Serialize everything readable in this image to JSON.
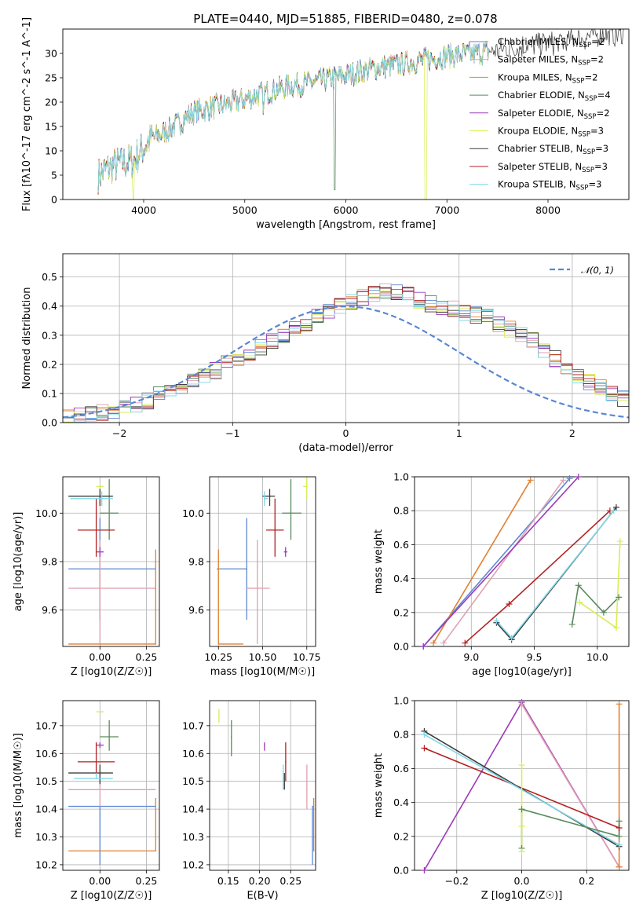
{
  "figure": {
    "title": "PLATE=0440, MJD=51885, FIBERID=0480, z=0.078"
  },
  "models": [
    {
      "label": "Chabrier MILES, N",
      "sub": "SSP",
      "suffix": "=2",
      "color": "#5b87d3"
    },
    {
      "label": "Salpeter MILES, N",
      "sub": "SSP",
      "suffix": "=2",
      "color": "#e0a0b0"
    },
    {
      "label": "Kroupa MILES, N",
      "sub": "SSP",
      "suffix": "=2",
      "color": "#b89a3a"
    },
    {
      "label": "Chabrier ELODIE, N",
      "sub": "SSP",
      "suffix": "=4",
      "color": "#5a8a5e"
    },
    {
      "label": "Salpeter ELODIE, N",
      "sub": "SSP",
      "suffix": "=2",
      "color": "#9b3ab8"
    },
    {
      "label": "Kroupa ELODIE, N",
      "sub": "SSP",
      "suffix": "=3",
      "color": "#d8ee50"
    },
    {
      "label": "Chabrier STELIB, N",
      "sub": "SSP",
      "suffix": "=3",
      "color": "#3c3c3c"
    },
    {
      "label": "Salpeter STELIB, N",
      "sub": "SSP",
      "suffix": "=3",
      "color": "#b22222"
    },
    {
      "label": "Kroupa STELIB, N",
      "sub": "SSP",
      "suffix": "=3",
      "color": "#7fd8e8"
    }
  ],
  "chart_data": [
    {
      "type": "line",
      "title": "PLATE=0440, MJD=51885, FIBERID=0480, z=0.078",
      "xlabel": "wavelength [Angstrom, rest frame]",
      "ylabel": "Flux [fλ10^-17 erg cm^-2 s^-1 A^-1]",
      "xlim": [
        3200,
        8800
      ],
      "ylim": [
        0,
        35
      ],
      "xticks": [
        4000,
        5000,
        6000,
        7000,
        8000
      ],
      "yticks": [
        0,
        5,
        10,
        15,
        20,
        25,
        30
      ],
      "legend": "top-right",
      "spectrum_trend": {
        "x": [
          3550,
          3700,
          3900,
          4050,
          4300,
          4500,
          4800,
          5000,
          5200,
          5500,
          5800,
          6000,
          6300,
          6600,
          7000,
          7300,
          7600,
          8000,
          8300,
          8600
        ],
        "y": [
          5,
          7,
          8,
          12,
          15,
          18,
          19.5,
          20.5,
          22,
          23.5,
          24.5,
          25.5,
          27,
          28,
          29.5,
          30,
          31,
          32,
          33,
          34
        ]
      }
    },
    {
      "type": "bar",
      "xlabel": "(data-model)/error",
      "ylabel": "Normed distribution",
      "xlim": [
        -2.5,
        2.5
      ],
      "ylim": [
        0,
        0.58
      ],
      "xticks": [
        -2,
        -1,
        0,
        1,
        2
      ],
      "yticks": [
        0.0,
        0.1,
        0.2,
        0.3,
        0.4,
        0.5
      ],
      "legend": "top-right",
      "reference_label": "N(0,1)",
      "reference_color": "#5b87d3",
      "bin_width": 0.1,
      "bin_start": -2.5,
      "histogram_mean": [
        0.02,
        0.025,
        0.03,
        0.035,
        0.04,
        0.05,
        0.06,
        0.075,
        0.095,
        0.11,
        0.125,
        0.14,
        0.16,
        0.18,
        0.2,
        0.22,
        0.24,
        0.26,
        0.28,
        0.3,
        0.32,
        0.34,
        0.36,
        0.38,
        0.4,
        0.41,
        0.43,
        0.44,
        0.45,
        0.45,
        0.44,
        0.42,
        0.41,
        0.4,
        0.39,
        0.38,
        0.37,
        0.36,
        0.34,
        0.32,
        0.3,
        0.28,
        0.25,
        0.22,
        0.19,
        0.16,
        0.14,
        0.12,
        0.1,
        0.085,
        0.07,
        0.06,
        0.05,
        0.042,
        0.035,
        0.03,
        0.025,
        0.02,
        0.018,
        0.015
      ]
    },
    {
      "type": "scatter",
      "xlabel": "Z [log10(Z/Z☉)]",
      "ylabel": "age [log10(age/yr)]",
      "xlim": [
        -0.2,
        0.32
      ],
      "ylim": [
        9.45,
        10.15
      ],
      "xticks": [
        0.0,
        0.25
      ],
      "yticks": [
        9.6,
        9.8,
        10.0
      ],
      "points": [
        {
          "x": 0.0,
          "y": 9.77,
          "xerr": [
            0.17,
            0.3
          ],
          "yerr": [
            0.21,
            0.21
          ],
          "color": "#5b87d3"
        },
        {
          "x": 0.0,
          "y": 9.69,
          "xerr": [
            0.17,
            0.3
          ],
          "yerr": [
            0.23,
            0.2
          ],
          "color": "#e0a0b0"
        },
        {
          "x": 0.3,
          "y": 9.46,
          "xerr": [
            0.47,
            0.0
          ],
          "yerr": [
            0.0,
            0.39
          ],
          "color": "#e08030"
        },
        {
          "x": 0.05,
          "y": 10.0,
          "xerr": [
            0.05,
            0.05
          ],
          "yerr": [
            0.11,
            0.14
          ],
          "color": "#5a8a5e"
        },
        {
          "x": 0.0,
          "y": 10.07,
          "xerr": [
            0.17,
            0.07
          ],
          "yerr": [
            0.04,
            0.03
          ],
          "color": "#3c3c3c"
        },
        {
          "x": -0.02,
          "y": 9.93,
          "xerr": [
            0.1,
            0.1
          ],
          "yerr": [
            0.11,
            0.13
          ],
          "color": "#b22222"
        },
        {
          "x": 0.0,
          "y": 9.84,
          "xerr": [
            0.02,
            0.02
          ],
          "yerr": [
            0.02,
            0.02
          ],
          "color": "#9b3ab8"
        },
        {
          "x": 0.01,
          "y": 10.06,
          "xerr": [
            0.17,
            0.06
          ],
          "yerr": [
            0.03,
            0.03
          ],
          "color": "#7fd8e8"
        },
        {
          "x": 0.0,
          "y": 10.11,
          "xerr": [
            0.02,
            0.02
          ],
          "yerr": [
            0.0,
            0.0
          ],
          "color": "#d8ee50"
        }
      ]
    },
    {
      "type": "scatter",
      "xlabel": "mass [log10(M/M☉)]",
      "ylabel": "",
      "xlim": [
        10.2,
        10.8
      ],
      "ylim": [
        9.45,
        10.15
      ],
      "xticks": [
        10.25,
        10.5,
        10.75
      ],
      "yticks": [
        9.6,
        9.8,
        10.0
      ],
      "points": [
        {
          "x": 10.41,
          "y": 9.77,
          "xerr": [
            0.17,
            0.0
          ],
          "yerr": [
            0.21,
            0.21
          ],
          "color": "#5b87d3"
        },
        {
          "x": 10.47,
          "y": 9.69,
          "xerr": [
            0.06,
            0.07
          ],
          "yerr": [
            0.23,
            0.2
          ],
          "color": "#e0a0b0"
        },
        {
          "x": 10.25,
          "y": 9.46,
          "xerr": [
            0.0,
            0.14
          ],
          "yerr": [
            0.0,
            0.39
          ],
          "color": "#e08030"
        },
        {
          "x": 10.66,
          "y": 10.0,
          "xerr": [
            0.05,
            0.06
          ],
          "yerr": [
            0.11,
            0.14
          ],
          "color": "#5a8a5e"
        },
        {
          "x": 10.54,
          "y": 10.07,
          "xerr": [
            0.04,
            0.03
          ],
          "yerr": [
            0.04,
            0.03
          ],
          "color": "#3c3c3c"
        },
        {
          "x": 10.57,
          "y": 9.93,
          "xerr": [
            0.05,
            0.05
          ],
          "yerr": [
            0.11,
            0.13
          ],
          "color": "#b22222"
        },
        {
          "x": 10.63,
          "y": 9.84,
          "xerr": [
            0.01,
            0.01
          ],
          "yerr": [
            0.02,
            0.02
          ],
          "color": "#9b3ab8"
        },
        {
          "x": 10.51,
          "y": 10.06,
          "xerr": [
            0.0,
            0.02
          ],
          "yerr": [
            0.03,
            0.03
          ],
          "color": "#7fd8e8"
        },
        {
          "x": 10.75,
          "y": 10.11,
          "xerr": [
            0.02,
            0.0
          ],
          "yerr": [
            0.05,
            0.05
          ],
          "color": "#d8ee50"
        }
      ]
    },
    {
      "type": "line",
      "xlabel": "age [log10(age/yr)]",
      "ylabel": "mass weight",
      "xlim": [
        8.55,
        10.25
      ],
      "ylim": [
        0,
        1.0
      ],
      "xticks": [
        9.0,
        9.5,
        10.0
      ],
      "yticks": [
        0.0,
        0.2,
        0.4,
        0.6,
        0.8,
        1.0
      ],
      "series": [
        {
          "x": [
            8.62,
            9.78
          ],
          "y": [
            0.0,
            0.99
          ],
          "color": "#5b87d3"
        },
        {
          "x": [
            8.78,
            9.73
          ],
          "y": [
            0.02,
            0.98
          ],
          "color": "#e0a0b0"
        },
        {
          "x": [
            8.7,
            9.47
          ],
          "y": [
            0.02,
            0.98
          ],
          "color": "#e08030"
        },
        {
          "x": [
            8.62,
            9.85
          ],
          "y": [
            0.0,
            1.0
          ],
          "color": "#9b3ab8"
        },
        {
          "x": [
            8.95,
            9.3,
            10.1
          ],
          "y": [
            0.02,
            0.25,
            0.8
          ],
          "color": "#b22222"
        },
        {
          "x": [
            9.2,
            9.32,
            10.15
          ],
          "y": [
            0.14,
            0.04,
            0.82
          ],
          "color": "#3c3c3c"
        },
        {
          "x": [
            9.2,
            9.32,
            10.13
          ],
          "y": [
            0.15,
            0.05,
            0.8
          ],
          "color": "#7fd8e8"
        },
        {
          "x": [
            9.8,
            9.85,
            10.05,
            10.17
          ],
          "y": [
            0.13,
            0.36,
            0.2,
            0.29
          ],
          "color": "#5a8a5e"
        },
        {
          "x": [
            9.86,
            10.15,
            10.18
          ],
          "y": [
            0.26,
            0.11,
            0.62
          ],
          "color": "#d8ee50"
        }
      ]
    },
    {
      "type": "scatter",
      "xlabel": "Z [log10(Z/Z☉)]",
      "ylabel": "mass [log10(M/M☉)]",
      "xlim": [
        -0.2,
        0.32
      ],
      "ylim": [
        10.18,
        10.79
      ],
      "xticks": [
        0.0,
        0.25
      ],
      "yticks": [
        10.2,
        10.3,
        10.4,
        10.5,
        10.6,
        10.7
      ],
      "points": [
        {
          "x": 0.0,
          "y": 10.41,
          "xerr": [
            0.17,
            0.3
          ],
          "yerr": [
            0.21,
            0.0
          ],
          "color": "#5b87d3"
        },
        {
          "x": 0.0,
          "y": 10.47,
          "xerr": [
            0.17,
            0.3
          ],
          "yerr": [
            0.06,
            0.07
          ],
          "color": "#e0a0b0"
        },
        {
          "x": 0.3,
          "y": 10.25,
          "xerr": [
            0.47,
            0.0
          ],
          "yerr": [
            0.0,
            0.19
          ],
          "color": "#e08030"
        },
        {
          "x": 0.05,
          "y": 10.66,
          "xerr": [
            0.05,
            0.05
          ],
          "yerr": [
            0.05,
            0.06
          ],
          "color": "#5a8a5e"
        },
        {
          "x": 0.0,
          "y": 10.53,
          "xerr": [
            0.17,
            0.07
          ],
          "yerr": [
            0.04,
            0.03
          ],
          "color": "#3c3c3c"
        },
        {
          "x": -0.02,
          "y": 10.57,
          "xerr": [
            0.1,
            0.1
          ],
          "yerr": [
            0.05,
            0.07
          ],
          "color": "#b22222"
        },
        {
          "x": 0.0,
          "y": 10.63,
          "xerr": [
            0.02,
            0.02
          ],
          "yerr": [
            0.01,
            0.01
          ],
          "color": "#9b3ab8"
        },
        {
          "x": -0.02,
          "y": 10.51,
          "xerr": [
            0.12,
            0.09
          ],
          "yerr": [
            0.0,
            0.02
          ],
          "color": "#7fd8e8"
        },
        {
          "x": 0.0,
          "y": 10.75,
          "xerr": [
            0.02,
            0.02
          ],
          "yerr": [
            0.0,
            0.0
          ],
          "color": "#d8ee50"
        }
      ]
    },
    {
      "type": "scatter",
      "xlabel": "E(B-V)",
      "ylabel": "",
      "xlim": [
        0.12,
        0.29
      ],
      "ylim": [
        10.18,
        10.79
      ],
      "xticks": [
        0.15,
        0.2,
        0.25
      ],
      "yticks": [
        10.2,
        10.3,
        10.4,
        10.5,
        10.6,
        10.7
      ],
      "points": [
        {
          "x": 0.285,
          "y": 10.41,
          "yerr": [
            0.21,
            0.0
          ],
          "color": "#5b87d3"
        },
        {
          "x": 0.276,
          "y": 10.47,
          "yerr": [
            0.07,
            0.09
          ],
          "color": "#e0a0b0"
        },
        {
          "x": 0.287,
          "y": 10.25,
          "yerr": [
            0.0,
            0.19
          ],
          "color": "#e08030"
        },
        {
          "x": 0.155,
          "y": 10.66,
          "yerr": [
            0.07,
            0.06
          ],
          "color": "#5a8a5e"
        },
        {
          "x": 0.24,
          "y": 10.5,
          "yerr": [
            0.03,
            0.03
          ],
          "color": "#3c3c3c"
        },
        {
          "x": 0.242,
          "y": 10.57,
          "yerr": [
            0.07,
            0.07
          ],
          "color": "#b22222"
        },
        {
          "x": 0.208,
          "y": 10.63,
          "yerr": [
            0.02,
            0.01
          ],
          "color": "#9b3ab8"
        },
        {
          "x": 0.238,
          "y": 10.51,
          "yerr": [
            0.04,
            0.05
          ],
          "color": "#7fd8e8"
        },
        {
          "x": 0.135,
          "y": 10.73,
          "yerr": [
            0.02,
            0.03
          ],
          "color": "#d8ee50"
        }
      ]
    },
    {
      "type": "line",
      "xlabel": "Z [log10(Z/Z☉)]",
      "ylabel": "mass weight",
      "xlim": [
        -0.33,
        0.33
      ],
      "ylim": [
        0,
        1.0
      ],
      "xticks": [
        -0.2,
        0.0,
        0.2
      ],
      "yticks": [
        0.0,
        0.2,
        0.4,
        0.6,
        0.8,
        1.0
      ],
      "series": [
        {
          "x": [
            -0.3,
            0.0,
            0.3
          ],
          "y": [
            0.0,
            0.99,
            0.02
          ],
          "color": "#9b3ab8"
        },
        {
          "x": [
            0.0,
            0.3
          ],
          "y": [
            0.98,
            0.02
          ],
          "color": "#e0a0b0"
        },
        {
          "x": [
            0.3,
            0.3
          ],
          "y": [
            0.02,
            0.98
          ],
          "color": "#e08030"
        },
        {
          "x": [
            -0.3,
            0.3
          ],
          "y": [
            0.72,
            0.25
          ],
          "color": "#b22222"
        },
        {
          "x": [
            -0.3,
            0.3
          ],
          "y": [
            0.82,
            0.14
          ],
          "color": "#3c3c3c"
        },
        {
          "x": [
            -0.3,
            0.3
          ],
          "y": [
            0.8,
            0.15
          ],
          "color": "#7fd8e8"
        },
        {
          "x": [
            0.0,
            0.0,
            0.3,
            0.3
          ],
          "y": [
            0.13,
            0.36,
            0.2,
            0.29
          ],
          "color": "#5a8a5e"
        },
        {
          "x": [
            0.0,
            0.0,
            0.0
          ],
          "y": [
            0.26,
            0.11,
            0.62
          ],
          "color": "#d8ee50"
        }
      ]
    }
  ]
}
